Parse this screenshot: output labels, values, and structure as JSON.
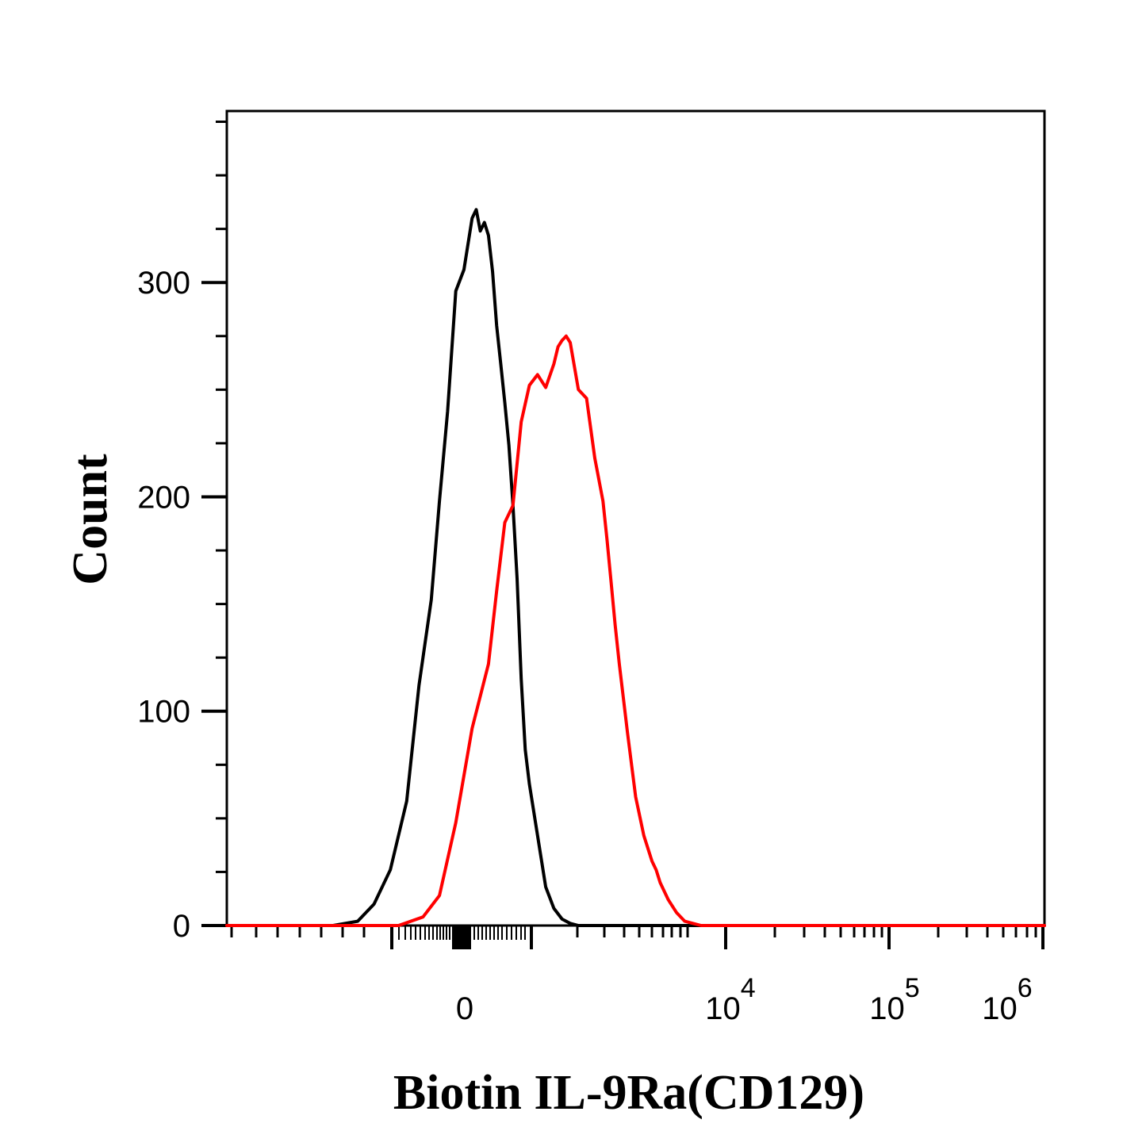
{
  "chart_data": {
    "type": "line",
    "title": "",
    "xlabel": "Biotin IL-9Ra(CD129)",
    "ylabel": "Count",
    "x_scale": "biexponential",
    "yticks": [
      0,
      100,
      200,
      300
    ],
    "ytick_labels": [
      "0",
      "100",
      "200",
      "300"
    ],
    "ylim": [
      0,
      380
    ],
    "xtick_labels": [
      {
        "base": "0",
        "exp": ""
      },
      {
        "base": "10",
        "exp": "4"
      },
      {
        "base": "10",
        "exp": "5"
      },
      {
        "base": "10",
        "exp": "6"
      }
    ],
    "grid": false,
    "legend": "none",
    "colors": {
      "series1": "#000000",
      "series2": "#ff0000",
      "axis": "#000000"
    },
    "series": [
      {
        "color": "#000000",
        "x": [
          0.0,
          0.13,
          0.16,
          0.18,
          0.2,
          0.22,
          0.235,
          0.25,
          0.26,
          0.27,
          0.28,
          0.29,
          0.3,
          0.305,
          0.31,
          0.315,
          0.32,
          0.325,
          0.33,
          0.335,
          0.34,
          0.345,
          0.35,
          0.355,
          0.36,
          0.365,
          0.37,
          0.38,
          0.39,
          0.4,
          0.41,
          0.42,
          0.43,
          0.44,
          0.45,
          0.46,
          0.47,
          0.49,
          0.52,
          0.56,
          1.0
        ],
        "y": [
          0,
          0,
          2,
          10,
          26,
          58,
          112,
          152,
          198,
          240,
          296,
          306,
          330,
          334,
          324,
          328,
          322,
          305,
          280,
          262,
          244,
          224,
          196,
          162,
          115,
          82,
          66,
          42,
          18,
          8,
          3,
          1,
          0,
          0,
          0,
          0,
          0,
          0,
          0,
          0,
          0
        ]
      },
      {
        "color": "#ff0000",
        "x": [
          0.0,
          0.21,
          0.24,
          0.26,
          0.28,
          0.3,
          0.32,
          0.33,
          0.34,
          0.35,
          0.36,
          0.37,
          0.38,
          0.39,
          0.4,
          0.405,
          0.41,
          0.415,
          0.42,
          0.43,
          0.44,
          0.45,
          0.46,
          0.465,
          0.47,
          0.475,
          0.48,
          0.49,
          0.5,
          0.51,
          0.52,
          0.525,
          0.53,
          0.54,
          0.55,
          0.56,
          0.57,
          0.58,
          0.6,
          0.62,
          0.64,
          0.66,
          0.7,
          1.0
        ],
        "y": [
          0,
          0,
          4,
          14,
          48,
          92,
          122,
          156,
          188,
          196,
          235,
          252,
          257,
          251,
          262,
          270,
          273,
          275,
          272,
          250,
          246,
          218,
          198,
          180,
          160,
          140,
          122,
          90,
          60,
          42,
          30,
          26,
          20,
          12,
          6,
          2,
          1,
          0,
          0,
          0,
          0,
          0,
          0,
          0
        ]
      }
    ]
  }
}
